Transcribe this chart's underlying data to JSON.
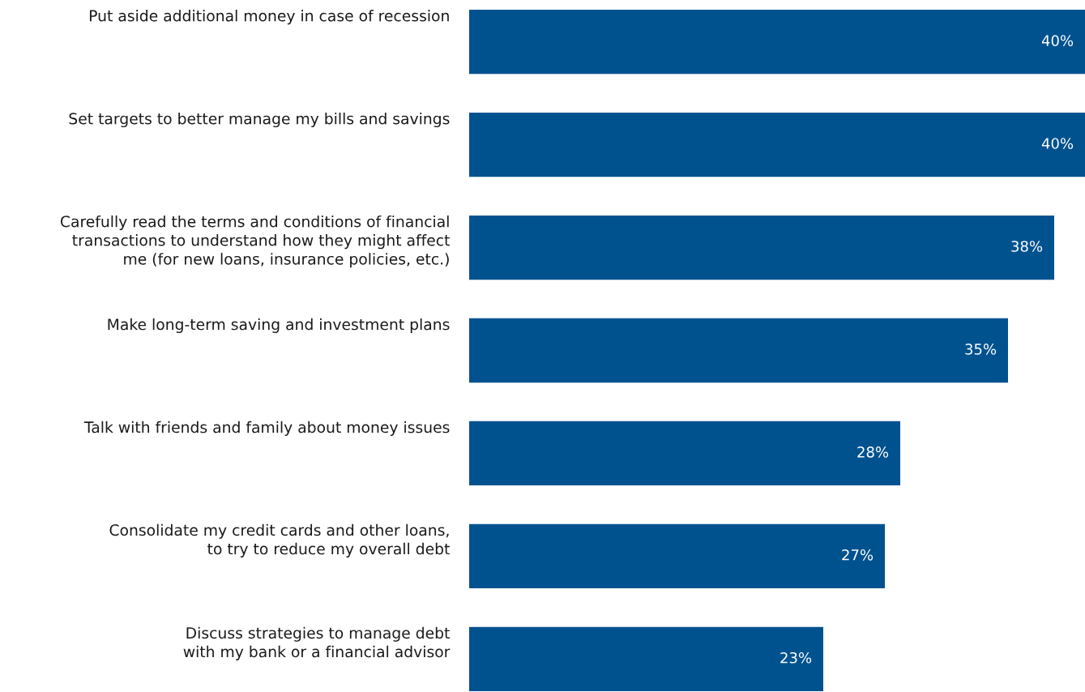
{
  "chart_data": {
    "type": "bar",
    "orientation": "horizontal",
    "categories": [
      "Put aside additional money in case of recession",
      "Set targets to better manage my bills and savings",
      "Carefully read the terms and conditions of financial\ntransactions to understand how they might affect\nme (for new loans, insurance policies, etc.)",
      "Make long-term saving and investment plans",
      "Talk with friends and family about money issues",
      "Consolidate my credit cards and other loans,\nto try to reduce my overall debt",
      "Discuss strategies to manage debt\nwith my bank or a financial advisor"
    ],
    "values": [
      40,
      40,
      38,
      35,
      28,
      27,
      23
    ],
    "value_labels": [
      "40%",
      "40%",
      "38%",
      "35%",
      "28%",
      "27%",
      "23%"
    ],
    "color": "#00528f",
    "xlim": [
      0,
      40
    ]
  }
}
